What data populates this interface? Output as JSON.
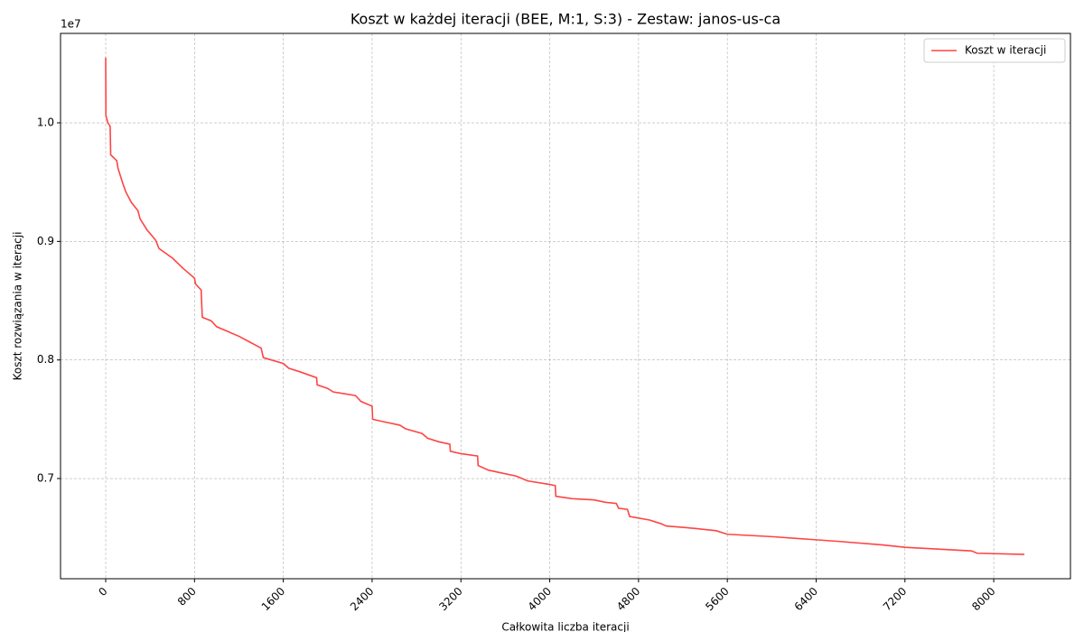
{
  "chart_data": {
    "type": "line",
    "title": "Koszt w każdej iteracji (BEE, M:1, S:3) - Zestaw: janos-us-ca",
    "x_label": "Całkowita liczba iteracji",
    "y_label": "Koszt rozwiązania w iteracji",
    "y_offset_label": "1e7",
    "x": [
      0,
      2,
      20,
      40,
      45,
      100,
      110,
      150,
      180,
      230,
      290,
      310,
      370,
      450,
      480,
      600,
      700,
      800,
      810,
      860,
      870,
      950,
      1000,
      1100,
      1200,
      1300,
      1400,
      1420,
      1600,
      1650,
      1750,
      1900,
      1905,
      2000,
      2050,
      2250,
      2300,
      2400,
      2405,
      2500,
      2650,
      2700,
      2850,
      2900,
      3000,
      3100,
      3105,
      3200,
      3350,
      3355,
      3450,
      3550,
      3700,
      3800,
      4000,
      4050,
      4055,
      4200,
      4400,
      4500,
      4600,
      4620,
      4700,
      4720,
      4900,
      5000,
      5050,
      5300,
      5500,
      5600,
      6000,
      6300,
      6600,
      7000,
      7200,
      7500,
      7800,
      7850,
      8276
    ],
    "series": [
      {
        "name": "Koszt w iteracji",
        "color": "#ff4444",
        "values": [
          10550000,
          10060000,
          10000000,
          9970000,
          9730000,
          9680000,
          9620000,
          9500000,
          9420000,
          9330000,
          9260000,
          9190000,
          9100000,
          9010000,
          8940000,
          8860000,
          8770000,
          8690000,
          8640000,
          8590000,
          8360000,
          8330000,
          8280000,
          8240000,
          8200000,
          8150000,
          8100000,
          8020000,
          7970000,
          7930000,
          7900000,
          7850000,
          7790000,
          7760000,
          7730000,
          7700000,
          7650000,
          7610000,
          7500000,
          7480000,
          7450000,
          7420000,
          7380000,
          7340000,
          7310000,
          7290000,
          7230000,
          7210000,
          7190000,
          7110000,
          7070000,
          7050000,
          7020000,
          6980000,
          6950000,
          6940000,
          6850000,
          6830000,
          6820000,
          6800000,
          6790000,
          6750000,
          6740000,
          6680000,
          6650000,
          6620000,
          6600000,
          6580000,
          6560000,
          6530000,
          6510000,
          6490000,
          6470000,
          6440000,
          6420000,
          6405000,
          6390000,
          6370000,
          6360000
        ]
      }
    ],
    "xlim": [
      -407,
      8691
    ],
    "ylim": [
      6155000,
      10754000
    ],
    "xticks": [
      0,
      800,
      1600,
      2400,
      3200,
      4000,
      4800,
      5600,
      6400,
      7200,
      8000
    ],
    "yticks": [
      {
        "value": 7000000,
        "label": "0.7"
      },
      {
        "value": 8000000,
        "label": "0.8"
      },
      {
        "value": 9000000,
        "label": "0.9"
      },
      {
        "value": 10000000,
        "label": "1.0"
      }
    ],
    "grid": true,
    "legend": "upper right"
  }
}
